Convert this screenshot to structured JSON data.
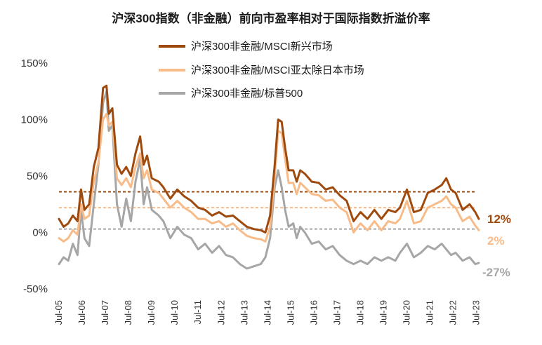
{
  "chart_data": {
    "type": "line",
    "title": "沪深300指数（非金融）前向市盈率相对于国际指数折溢价率",
    "xlabel": "",
    "ylabel": "",
    "ylim": [
      -50,
      150
    ],
    "x_start": 2005.5,
    "x_end": 2023.6,
    "yticks": [
      {
        "value": 150,
        "label": "150%"
      },
      {
        "value": 100,
        "label": "100%"
      },
      {
        "value": 50,
        "label": "50%"
      },
      {
        "value": 0,
        "label": "0%"
      },
      {
        "value": -50,
        "label": "-50%"
      }
    ],
    "xticks": [
      "Jul-05",
      "Jul-06",
      "Jul-07",
      "Jul-08",
      "Jul-09",
      "Jul-10",
      "Jul-11",
      "Jul-12",
      "Jul-13",
      "Jul-14",
      "Jul-15",
      "Jul-16",
      "Jul-17",
      "Jul-18",
      "Jul-19",
      "Jul-20",
      "Jul-21",
      "Jul-22",
      "Jul-23"
    ],
    "series": [
      {
        "name": "沪深300非金融/MSCI新兴市场",
        "color": "#9E4A0E",
        "mean": 36,
        "end_label": "12%",
        "x": [
          2005.5,
          2005.7,
          2005.9,
          2006.1,
          2006.3,
          2006.45,
          2006.6,
          2006.8,
          2007.0,
          2007.2,
          2007.4,
          2007.55,
          2007.65,
          2007.8,
          2008.0,
          2008.2,
          2008.4,
          2008.6,
          2008.8,
          2009.0,
          2009.15,
          2009.3,
          2009.5,
          2009.8,
          2010.0,
          2010.3,
          2010.6,
          2010.9,
          2011.2,
          2011.5,
          2011.8,
          2012.1,
          2012.4,
          2012.7,
          2013.0,
          2013.3,
          2013.6,
          2013.9,
          2014.2,
          2014.4,
          2014.6,
          2014.8,
          2014.95,
          2015.1,
          2015.25,
          2015.4,
          2015.6,
          2015.75,
          2015.9,
          2016.1,
          2016.4,
          2016.7,
          2017.0,
          2017.3,
          2017.6,
          2017.9,
          2018.2,
          2018.5,
          2018.8,
          2019.1,
          2019.4,
          2019.7,
          2020.0,
          2020.2,
          2020.5,
          2020.8,
          2021.1,
          2021.4,
          2021.7,
          2022.0,
          2022.2,
          2022.4,
          2022.6,
          2022.9,
          2023.2,
          2023.45,
          2023.6
        ],
        "values": [
          12,
          5,
          8,
          15,
          10,
          38,
          20,
          25,
          58,
          75,
          128,
          130,
          105,
          110,
          60,
          52,
          58,
          50,
          70,
          85,
          60,
          68,
          48,
          45,
          40,
          30,
          38,
          32,
          28,
          22,
          20,
          15,
          18,
          14,
          15,
          10,
          5,
          3,
          2,
          0,
          15,
          60,
          100,
          98,
          75,
          55,
          55,
          45,
          55,
          52,
          45,
          44,
          38,
          40,
          33,
          28,
          10,
          18,
          12,
          20,
          12,
          20,
          18,
          22,
          38,
          18,
          20,
          35,
          38,
          42,
          48,
          38,
          35,
          20,
          25,
          18,
          12
        ]
      },
      {
        "name": "沪深300非金融/MSCI亚太除日本市场",
        "color": "#F8BC8A",
        "mean": 22,
        "end_label": "2%",
        "x": [
          2005.5,
          2005.7,
          2005.9,
          2006.1,
          2006.3,
          2006.45,
          2006.6,
          2006.8,
          2007.0,
          2007.2,
          2007.4,
          2007.55,
          2007.65,
          2007.8,
          2008.0,
          2008.2,
          2008.4,
          2008.6,
          2008.8,
          2009.0,
          2009.15,
          2009.3,
          2009.5,
          2009.8,
          2010.0,
          2010.3,
          2010.6,
          2010.9,
          2011.2,
          2011.5,
          2011.8,
          2012.1,
          2012.4,
          2012.7,
          2013.0,
          2013.3,
          2013.6,
          2013.9,
          2014.2,
          2014.4,
          2014.6,
          2014.8,
          2014.95,
          2015.1,
          2015.25,
          2015.4,
          2015.6,
          2015.75,
          2015.9,
          2016.1,
          2016.4,
          2016.7,
          2017.0,
          2017.3,
          2017.6,
          2017.9,
          2018.2,
          2018.5,
          2018.8,
          2019.1,
          2019.4,
          2019.7,
          2020.0,
          2020.2,
          2020.5,
          2020.8,
          2021.1,
          2021.4,
          2021.7,
          2022.0,
          2022.2,
          2022.4,
          2022.6,
          2022.9,
          2023.2,
          2023.45,
          2023.6
        ],
        "values": [
          -5,
          -8,
          -5,
          2,
          -2,
          25,
          12,
          15,
          45,
          62,
          100,
          105,
          95,
          98,
          48,
          42,
          48,
          40,
          58,
          70,
          48,
          55,
          38,
          35,
          30,
          22,
          28,
          22,
          18,
          12,
          12,
          8,
          10,
          5,
          8,
          2,
          -3,
          -5,
          -6,
          -8,
          5,
          50,
          90,
          88,
          65,
          44,
          44,
          34,
          44,
          40,
          34,
          33,
          28,
          29,
          22,
          18,
          0,
          8,
          2,
          10,
          2,
          10,
          8,
          12,
          28,
          8,
          10,
          22,
          25,
          28,
          32,
          25,
          22,
          10,
          14,
          6,
          2
        ]
      },
      {
        "name": "沪深300非金融/标普500",
        "color": "#A6A6A6",
        "mean": 3,
        "end_label": "-27%",
        "x": [
          2005.5,
          2005.7,
          2005.9,
          2006.1,
          2006.3,
          2006.45,
          2006.6,
          2006.8,
          2007.0,
          2007.2,
          2007.4,
          2007.55,
          2007.65,
          2007.8,
          2008.0,
          2008.2,
          2008.4,
          2008.6,
          2008.8,
          2009.0,
          2009.15,
          2009.3,
          2009.5,
          2009.8,
          2010.0,
          2010.3,
          2010.6,
          2010.9,
          2011.2,
          2011.5,
          2011.8,
          2012.1,
          2012.4,
          2012.7,
          2013.0,
          2013.3,
          2013.6,
          2013.9,
          2014.2,
          2014.4,
          2014.6,
          2014.8,
          2014.95,
          2015.1,
          2015.25,
          2015.4,
          2015.6,
          2015.75,
          2015.9,
          2016.1,
          2016.4,
          2016.7,
          2017.0,
          2017.3,
          2017.6,
          2017.9,
          2018.2,
          2018.5,
          2018.8,
          2019.1,
          2019.4,
          2019.7,
          2020.0,
          2020.2,
          2020.5,
          2020.8,
          2021.1,
          2021.4,
          2021.7,
          2022.0,
          2022.2,
          2022.4,
          2022.6,
          2022.9,
          2023.2,
          2023.45,
          2023.6
        ],
        "values": [
          -28,
          -22,
          -25,
          -10,
          -20,
          20,
          -5,
          -12,
          25,
          60,
          115,
          125,
          90,
          95,
          25,
          5,
          30,
          10,
          45,
          65,
          25,
          40,
          20,
          15,
          10,
          -5,
          5,
          -2,
          -5,
          -15,
          -10,
          -18,
          -12,
          -20,
          -22,
          -28,
          -32,
          -30,
          -28,
          -22,
          -5,
          40,
          55,
          40,
          20,
          5,
          8,
          -5,
          5,
          0,
          -10,
          -8,
          -15,
          -12,
          -20,
          -25,
          -28,
          -25,
          -28,
          -22,
          -25,
          -22,
          -25,
          -18,
          -10,
          -22,
          -18,
          -12,
          -15,
          -10,
          -15,
          -20,
          -18,
          -25,
          -22,
          -28,
          -27
        ]
      }
    ]
  }
}
